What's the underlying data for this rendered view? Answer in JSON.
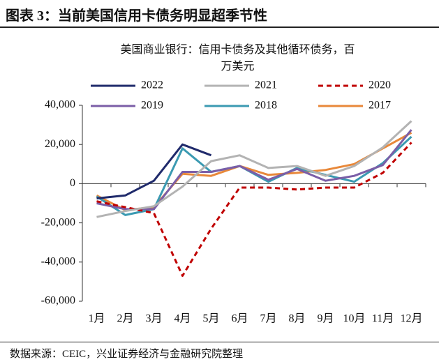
{
  "chart_data": {
    "type": "line",
    "title": "图表 3：当前美国信用卡债务明显超季节性",
    "subtitle": "美国商业银行：信用卡债务及其他循环债务，百万美元",
    "source": "数据来源：CEIC，兴业证券经济与金融研究院整理",
    "categories": [
      "1月",
      "2月",
      "3月",
      "4月",
      "5月",
      "6月",
      "7月",
      "8月",
      "9月",
      "10月",
      "11月",
      "12月"
    ],
    "ylim": [
      -60000,
      40000
    ],
    "yticks": [
      {
        "value": -60000,
        "label": "-60,000"
      },
      {
        "value": -40000,
        "label": "-40,000"
      },
      {
        "value": -20000,
        "label": "-20,000"
      },
      0,
      {
        "value": 20000,
        "label": "20,000"
      },
      {
        "value": 40000,
        "label": "40,000"
      }
    ],
    "series": [
      {
        "name": "2022",
        "color": "#1f2a6b",
        "values": [
          -7500,
          -6000,
          1500,
          20000,
          14500,
          null,
          null,
          null,
          null,
          null,
          null,
          null
        ]
      },
      {
        "name": "2021",
        "color": "#b3b3b3",
        "values": [
          -17000,
          -14000,
          -11500,
          -1500,
          11500,
          14500,
          8000,
          9000,
          4000,
          9000,
          18500,
          32000
        ]
      },
      {
        "name": "2020",
        "color": "#c00000",
        "dashed": true,
        "values": [
          -9000,
          -12000,
          -15000,
          -47000,
          -23000,
          -2000,
          -2000,
          -3000,
          -2000,
          -2000,
          5500,
          21000
        ]
      },
      {
        "name": "2019",
        "color": "#7b5ea7",
        "values": [
          -10000,
          -13000,
          -13000,
          6000,
          6000,
          9000,
          2000,
          7500,
          1500,
          4000,
          9500,
          27500
        ]
      },
      {
        "name": "2018",
        "color": "#3b9ab2",
        "values": [
          -6500,
          -16000,
          -13000,
          18000,
          6000,
          9000,
          1000,
          8000,
          4500,
          1000,
          10500,
          24000
        ]
      },
      {
        "name": "2017",
        "color": "#e8883a",
        "values": [
          -6000,
          -13500,
          -12000,
          5000,
          4000,
          9000,
          4500,
          5500,
          7000,
          10000,
          18000,
          26000
        ]
      }
    ]
  }
}
